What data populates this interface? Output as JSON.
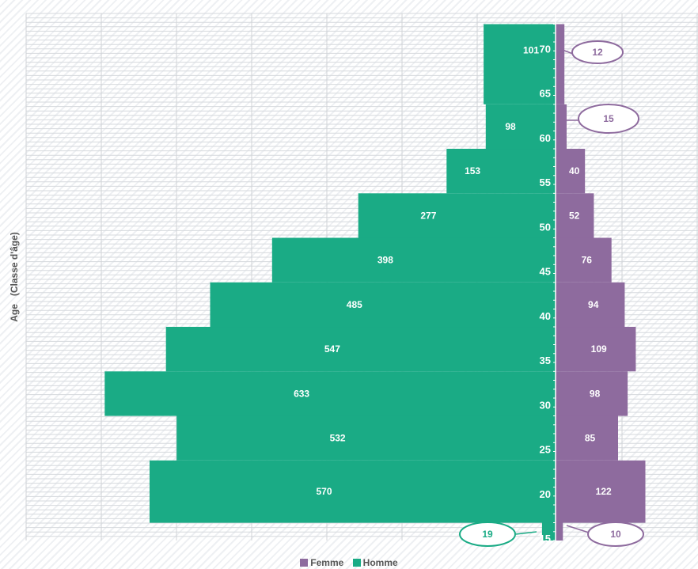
{
  "chart_data": {
    "type": "bar",
    "orientation": "horizontal-pyramid",
    "ylabel": "Age   (Classe d'âge)",
    "y_ticks": [
      15,
      20,
      25,
      30,
      35,
      40,
      45,
      50,
      55,
      60,
      65,
      70
    ],
    "ylim": [
      15,
      73
    ],
    "grid": true,
    "legend_position": "bottom",
    "series": [
      {
        "name": "Femme",
        "color": "#8e6b9e",
        "bins": [
          {
            "from": 15,
            "to": 17,
            "value": 10
          },
          {
            "from": 17,
            "to": 24,
            "value": 122
          },
          {
            "from": 24,
            "to": 29,
            "value": 85
          },
          {
            "from": 29,
            "to": 34,
            "value": 98
          },
          {
            "from": 34,
            "to": 39,
            "value": 109
          },
          {
            "from": 39,
            "to": 44,
            "value": 94
          },
          {
            "from": 44,
            "to": 49,
            "value": 76
          },
          {
            "from": 49,
            "to": 54,
            "value": 52
          },
          {
            "from": 54,
            "to": 59,
            "value": 40
          },
          {
            "from": 59,
            "to": 64,
            "value": 15
          },
          {
            "from": 64,
            "to": 73,
            "value": 12
          }
        ]
      },
      {
        "name": "Homme",
        "color": "#1aab85",
        "bins": [
          {
            "from": 15,
            "to": 17,
            "value": 19
          },
          {
            "from": 17,
            "to": 24,
            "value": 570
          },
          {
            "from": 24,
            "to": 29,
            "value": 532
          },
          {
            "from": 29,
            "to": 34,
            "value": 633
          },
          {
            "from": 34,
            "to": 39,
            "value": 547
          },
          {
            "from": 39,
            "to": 44,
            "value": 485
          },
          {
            "from": 44,
            "to": 49,
            "value": 398
          },
          {
            "from": 49,
            "to": 54,
            "value": 277
          },
          {
            "from": 54,
            "to": 59,
            "value": 153
          },
          {
            "from": 59,
            "to": 64,
            "value": 98
          },
          {
            "from": 64,
            "to": 73,
            "value": 101
          }
        ]
      }
    ]
  }
}
